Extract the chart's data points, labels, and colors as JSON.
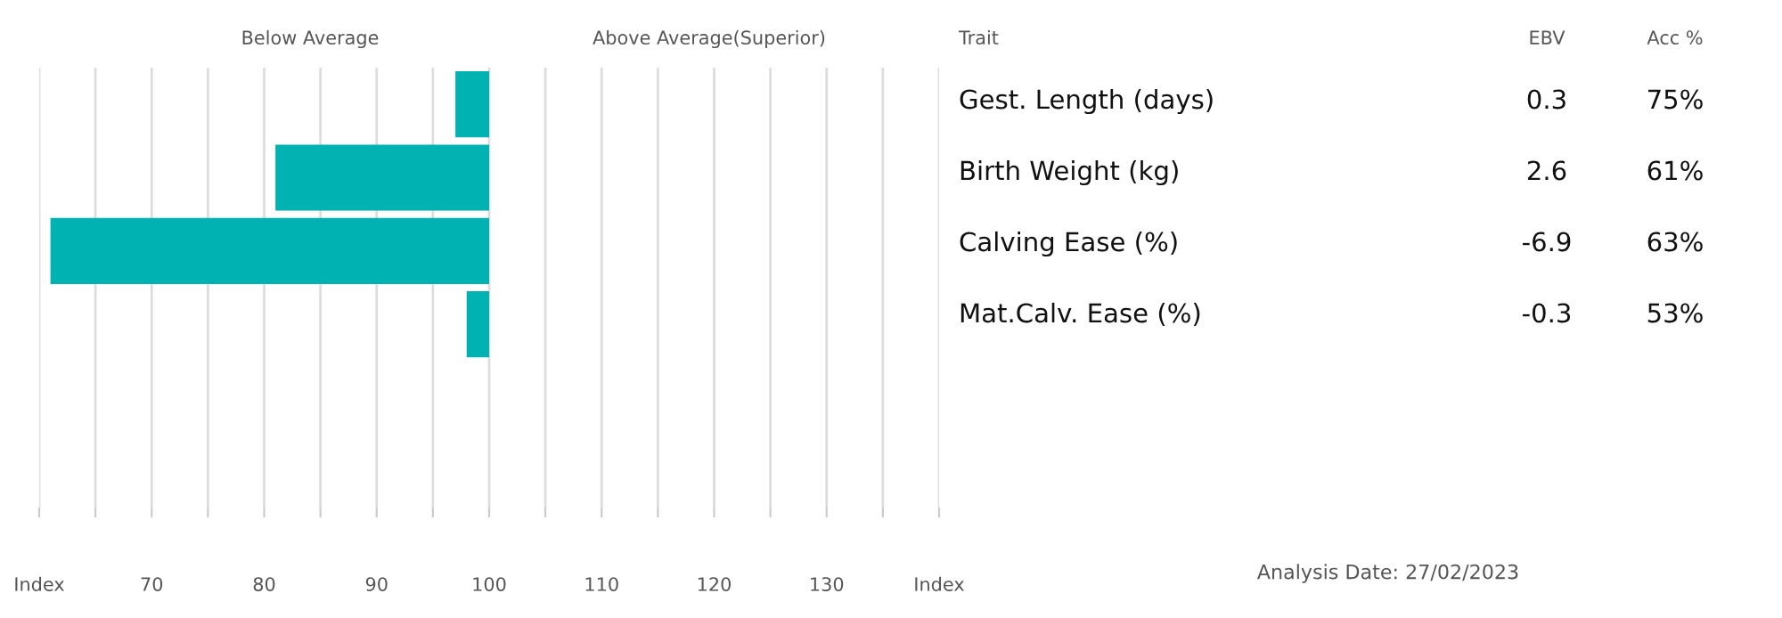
{
  "chart_data": [
    {
      "type": "bar",
      "orientation": "horizontal",
      "categories": [
        null,
        null,
        null,
        null,
        null,
        null
      ],
      "base": [
        100,
        100,
        100,
        100,
        null,
        null
      ],
      "values": [
        -3,
        -19,
        -39,
        -2,
        null,
        null
      ],
      "color": "#00b2b2",
      "xlim": [
        60,
        140
      ],
      "xticks": [
        {
          "value": 60,
          "label": "Index"
        },
        {
          "value": 65,
          "label": null
        },
        70,
        {
          "value": 75,
          "label": null
        },
        80,
        {
          "value": 85,
          "label": null
        },
        90,
        {
          "value": 95,
          "label": null
        },
        100,
        {
          "value": 105,
          "label": null
        },
        110,
        {
          "value": 115,
          "label": null
        },
        120,
        {
          "value": 125,
          "label": null
        },
        130,
        {
          "value": 135,
          "label": null
        },
        {
          "value": 140,
          "label": "Index"
        }
      ],
      "grid": "x",
      "tick_labels": "x",
      "annotations": [
        "Below Average",
        "Above Average(Superior)"
      ]
    },
    {
      "type": "other",
      "annotations": [
        "Trait",
        "EBV",
        "Acc %",
        "Gest. Length (days)",
        "0.3",
        "75%",
        "Birth Weight (kg)",
        "2.6",
        "61%",
        "Calving Ease (%)",
        "-6.9",
        "63%",
        "Mat.Calv. Ease (%)",
        "-0.3",
        "53%",
        "Analysis Date: 27/02/2023"
      ]
    }
  ]
}
